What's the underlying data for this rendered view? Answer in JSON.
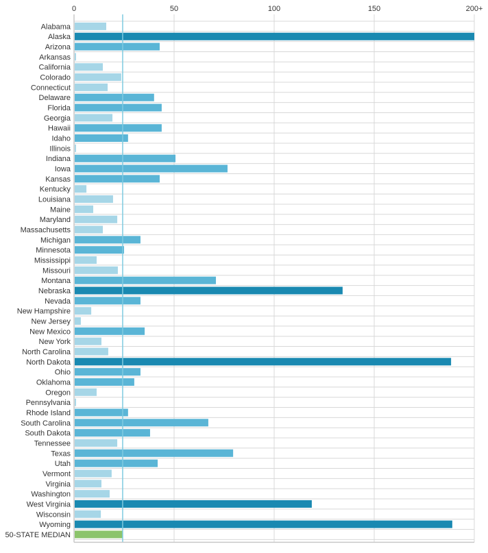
{
  "chart_data": {
    "type": "bar",
    "orientation": "horizontal",
    "xlim": [
      0,
      200
    ],
    "xticks": [
      {
        "value": 0,
        "label": "0"
      },
      {
        "value": 50,
        "label": "50"
      },
      {
        "value": 100,
        "label": "100"
      },
      {
        "value": 150,
        "label": "150"
      },
      {
        "value": 200,
        "label": "200+"
      }
    ],
    "grid": true,
    "median_value": 24.3,
    "colors": {
      "low": "#a6d6e7",
      "mid": "#5ab5d6",
      "high": "#1a89b1",
      "median": "#8cc46c",
      "median_line": "#7fcbe0",
      "grid": "#d8d8d8"
    },
    "categories": [
      "Alabama",
      "Alaska",
      "Arizona",
      "Arkansas",
      "California",
      "Colorado",
      "Connecticut",
      "Delaware",
      "Florida",
      "Georgia",
      "Hawaii",
      "Idaho",
      "Illinois",
      "Indiana",
      "Iowa",
      "Kansas",
      "Kentucky",
      "Louisiana",
      "Maine",
      "Maryland",
      "Massachusetts",
      "Michigan",
      "Minnesota",
      "Mississippi",
      "Missouri",
      "Montana",
      "Nebraska",
      "Nevada",
      "New Hampshire",
      "New Jersey",
      "New Mexico",
      "New York",
      "North Carolina",
      "North Dakota",
      "Ohio",
      "Oklahoma",
      "Oregon",
      "Pennsylvania",
      "Rhode Island",
      "South Carolina",
      "South Dakota",
      "Tennessee",
      "Texas",
      "Utah",
      "Vermont",
      "Virginia",
      "Washington",
      "West Virginia",
      "Wisconsin",
      "Wyoming",
      "50-STATE MEDIAN"
    ],
    "values": [
      16.1,
      200,
      42.8,
      1,
      14.4,
      23.6,
      16.8,
      40,
      43.8,
      19.2,
      43.8,
      27,
      1,
      50.7,
      76.7,
      42.8,
      6.2,
      19.5,
      9.6,
      21.6,
      14.4,
      33.2,
      25,
      11.3,
      21.9,
      70.9,
      134.2,
      33.2,
      8.6,
      3.4,
      35.3,
      13.7,
      17.1,
      188.4,
      33.2,
      30.1,
      11.3,
      1,
      27,
      67.1,
      38,
      21.6,
      79.5,
      41.8,
      18.8,
      13.7,
      17.8,
      118.8,
      13.4,
      189,
      24.3
    ]
  }
}
